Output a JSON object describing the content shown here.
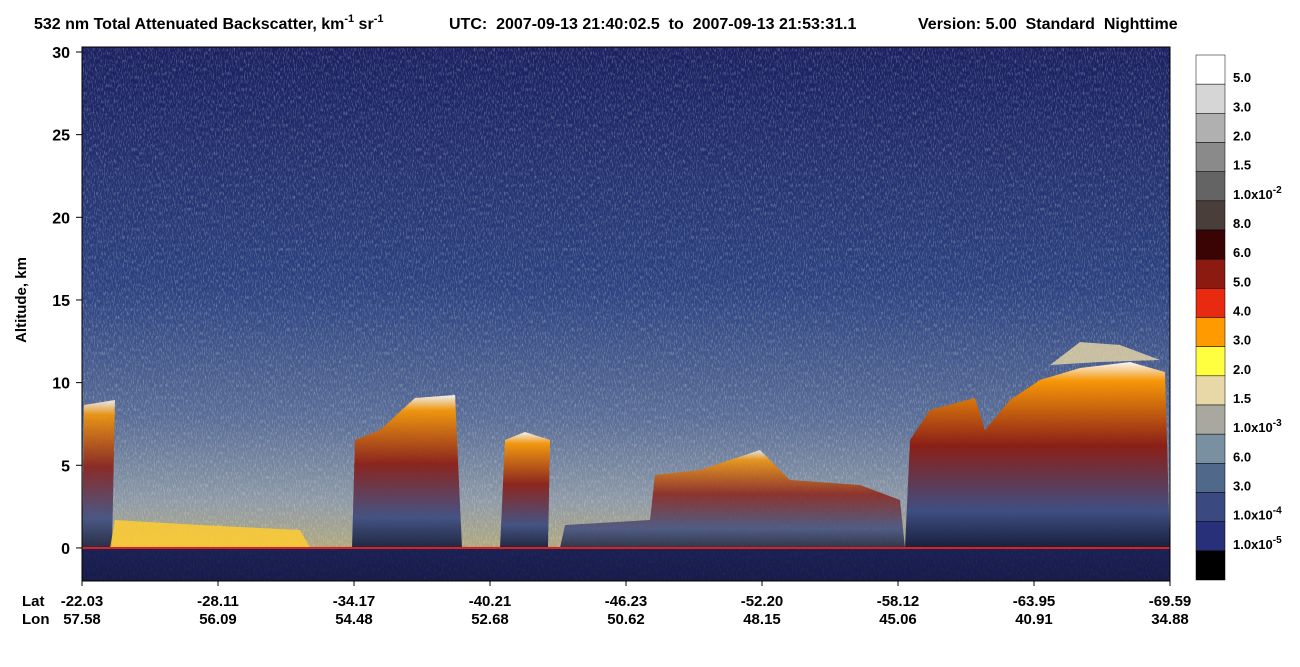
{
  "chart_data": {
    "type": "curtain",
    "title": {
      "main": "532 nm Total Attenuated Backscatter, km",
      "sup1": "-1",
      "unit2": " sr",
      "sup2": "-1",
      "utc": "UTC:  2007-09-13 21:40:02.5  to  2007-09-13 21:53:31.1",
      "version": "Version: 5.00  Standard  Nighttime"
    },
    "y_label": "Altitude, km",
    "ylim": [
      -2,
      30
    ],
    "yticks": [
      0,
      5,
      10,
      15,
      20,
      25,
      30
    ],
    "x_row_labels": [
      "Lat",
      "Lon"
    ],
    "lat": [
      "-22.03",
      "-28.11",
      "-34.17",
      "-40.21",
      "-46.23",
      "-52.20",
      "-58.12",
      "-63.95",
      "-69.59"
    ],
    "lon": [
      "57.58",
      "56.09",
      "54.48",
      "52.68",
      "50.62",
      "48.15",
      "45.06",
      "40.91",
      "34.88"
    ],
    "colorbar": {
      "colors": [
        "#ffffff",
        "#d6d6d6",
        "#b0b0b0",
        "#8a8a8a",
        "#646464",
        "#4a3e3a",
        "#3a0404",
        "#8c1a10",
        "#e82a10",
        "#ff9a00",
        "#ffff40",
        "#e8d8a8",
        "#a8a8a0",
        "#7890a0",
        "#50688a",
        "#3a4a80",
        "#28307a",
        "#000000"
      ],
      "labels": [
        {
          "text": "5.0"
        },
        {
          "text": "3.0"
        },
        {
          "text": "2.0"
        },
        {
          "text": "1.5"
        },
        {
          "text": "1.0x10",
          "sup": "-2"
        },
        {
          "text": "8.0"
        },
        {
          "text": "6.0"
        },
        {
          "text": "5.0"
        },
        {
          "text": "4.0"
        },
        {
          "text": "3.0"
        },
        {
          "text": "2.0"
        },
        {
          "text": "1.5"
        },
        {
          "text": "1.0x10",
          "sup": "-3"
        },
        {
          "text": "6.0"
        },
        {
          "text": "3.0"
        },
        {
          "text": "1.0x10",
          "sup": "-4"
        },
        {
          "text": "1.0x10",
          "sup": "-5"
        }
      ]
    }
  }
}
